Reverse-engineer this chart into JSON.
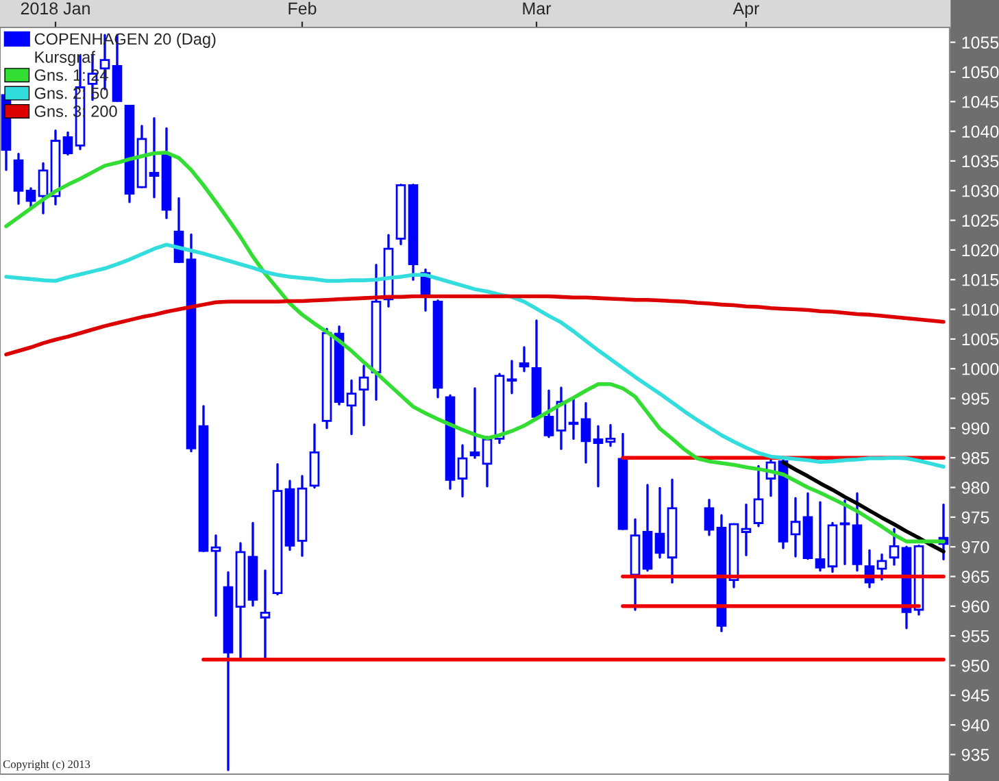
{
  "chart_data": {
    "type": "candlestick",
    "categories": [
      null,
      null,
      null,
      null,
      "2018 Jan",
      null,
      null,
      null,
      null,
      null,
      null,
      null,
      null,
      null,
      null,
      null,
      null,
      null,
      null,
      null,
      null,
      null,
      null,
      null,
      "Feb",
      null,
      null,
      null,
      null,
      null,
      null,
      null,
      null,
      null,
      null,
      null,
      null,
      null,
      null,
      null,
      null,
      null,
      null,
      "Mar",
      null,
      null,
      null,
      null,
      null,
      null,
      null,
      null,
      null,
      null,
      null,
      null,
      null,
      null,
      null,
      null,
      "Apr",
      null,
      null,
      null,
      null,
      null,
      null,
      null,
      null,
      null,
      null,
      null,
      null,
      null,
      null,
      null,
      null
    ],
    "series": [
      {
        "name": "COPENHAGEN 20 (Dag)",
        "color": "#0000ff",
        "ohlc": [
          [
            1046.1,
            1046.1,
            1033.5,
            1036.9
          ],
          [
            1035.1,
            1036.2,
            1027.8,
            1030.0
          ],
          [
            1030.0,
            1030.4,
            1027.3,
            1028.3
          ],
          [
            1029.1,
            1034.6,
            1026.2,
            1033.4
          ],
          [
            1029.1,
            1040.1,
            1027.7,
            1038.4
          ],
          [
            1039.0,
            1039.8,
            1036.1,
            1036.3
          ],
          [
            1037.6,
            1052.7,
            1037.0,
            1047.4
          ],
          [
            1048.0,
            1052.8,
            1045.3,
            1049.7
          ],
          [
            1050.6,
            1056.2,
            1047.1,
            1052.0
          ],
          [
            1051.0,
            1056.2,
            1045.1,
            1045.1
          ],
          [
            1044.3,
            1044.3,
            1028.1,
            1029.5
          ],
          [
            1030.6,
            1040.9,
            1030.6,
            1038.7
          ],
          [
            1033.0,
            1042.2,
            1028.9,
            1032.5
          ],
          [
            1036.1,
            1040.5,
            1025.4,
            1026.8
          ],
          [
            1023.1,
            1028.7,
            1018.0,
            1018.0
          ],
          [
            1018.4,
            1022.6,
            986.1,
            986.6
          ],
          [
            990.3,
            993.7,
            969.3,
            969.3
          ],
          [
            969.3,
            971.9,
            958.4,
            969.9
          ],
          [
            963.2,
            965.7,
            932.4,
            952.2
          ],
          [
            959.9,
            970.6,
            951.3,
            969.1
          ],
          [
            968.3,
            974.0,
            960.1,
            961.1
          ],
          [
            958.1,
            966.0,
            951.3,
            958.9
          ],
          [
            962.2,
            983.9,
            962.0,
            979.4
          ],
          [
            979.7,
            981.1,
            969.5,
            970.2
          ],
          [
            971.0,
            981.9,
            968.5,
            979.8
          ],
          [
            980.3,
            990.6,
            980.0,
            985.9
          ],
          [
            991.2,
            1006.7,
            990.0,
            1006.0
          ],
          [
            1005.9,
            1007.1,
            994.0,
            994.4
          ],
          [
            993.8,
            998.0,
            989.0,
            995.8
          ],
          [
            996.5,
            1000.5,
            990.5,
            998.5
          ],
          [
            999.4,
            1017.5,
            994.8,
            1011.3
          ],
          [
            1011.7,
            1022.5,
            1010.5,
            1020.2
          ],
          [
            1021.9,
            1031.0,
            1021.0,
            1030.9
          ],
          [
            1030.9,
            1031.0,
            1015.0,
            1017.6
          ],
          [
            1016.1,
            1016.7,
            1009.8,
            1012.1
          ],
          [
            1011.3,
            1011.5,
            995.2,
            996.8
          ],
          [
            995.2,
            995.5,
            979.8,
            981.3
          ],
          [
            981.5,
            987.1,
            978.5,
            984.9
          ],
          [
            985.9,
            996.7,
            985.0,
            985.4
          ],
          [
            984.0,
            988.5,
            980.2,
            988.1
          ],
          [
            988.2,
            999.1,
            987.5,
            998.8
          ],
          [
            998.2,
            1001.3,
            995.9,
            998.0
          ],
          [
            1000.9,
            1003.6,
            999.6,
            1000.4
          ],
          [
            1000.1,
            1008.1,
            991.5,
            991.9
          ],
          [
            991.9,
            996.3,
            988.5,
            988.8
          ],
          [
            989.6,
            996.8,
            986.5,
            994.4
          ],
          [
            990.9,
            994.8,
            988.2,
            990.7
          ],
          [
            991.5,
            994.2,
            984.2,
            987.8
          ],
          [
            988.1,
            990.3,
            980.2,
            987.5
          ],
          [
            987.7,
            990.5,
            987.0,
            988.2
          ],
          [
            984.8,
            989.0,
            973.0,
            973.0
          ],
          [
            965.3,
            974.6,
            959.4,
            971.9
          ],
          [
            972.5,
            980.4,
            966.0,
            966.3
          ],
          [
            972.2,
            979.9,
            968.2,
            969.0
          ],
          [
            968.2,
            981.3,
            964.0,
            976.5
          ],
          null,
          null,
          [
            976.5,
            977.9,
            972.0,
            972.9
          ],
          [
            973.2,
            975.3,
            955.8,
            956.7
          ],
          [
            964.4,
            973.8,
            963.2,
            973.8
          ],
          [
            972.5,
            977.1,
            968.6,
            973.0
          ],
          [
            974.0,
            983.6,
            973.5,
            978.0
          ],
          [
            981.5,
            985.2,
            978.6,
            984.2
          ],
          [
            984.4,
            984.8,
            969.8,
            970.9
          ],
          [
            972.1,
            978.2,
            968.4,
            974.2
          ],
          [
            975.0,
            979.0,
            968.0,
            968.1
          ],
          [
            967.9,
            977.5,
            966.0,
            966.5
          ],
          [
            966.7,
            974.0,
            965.8,
            973.6
          ],
          [
            973.9,
            977.8,
            967.1,
            973.8
          ],
          [
            973.6,
            979.0,
            966.0,
            967.1
          ],
          [
            966.7,
            969.4,
            963.2,
            964.0
          ],
          [
            966.3,
            968.7,
            964.5,
            967.6
          ],
          [
            968.2,
            973.0,
            967.0,
            970.1
          ],
          [
            969.8,
            970.0,
            956.3,
            959.0
          ],
          [
            959.4,
            970.2,
            958.6,
            970.1
          ],
          null,
          [
            971.5,
            977.1,
            967.9,
            970.5
          ]
        ]
      },
      {
        "type": "line",
        "name": "Gns. 1: 24",
        "color": "#33dd33",
        "values": [
          1024.0,
          1025.5,
          1027.0,
          1028.5,
          1029.9,
          1031.0,
          1032.0,
          1033.1,
          1034.2,
          1034.7,
          1035.3,
          1035.8,
          1036.3,
          1036.4,
          1035.5,
          1033.5,
          1030.9,
          1028.1,
          1025.2,
          1022.2,
          1018.9,
          1016.0,
          1013.5,
          1011.0,
          1009.1,
          1007.6,
          1006.2,
          1004.7,
          1003.0,
          1001.1,
          999.3,
          997.4,
          995.5,
          993.6,
          992.5,
          991.5,
          990.6,
          989.7,
          988.9,
          988.3,
          988.8,
          989.5,
          990.4,
          991.6,
          992.8,
          994.0,
          995.1,
          996.3,
          997.4,
          997.4,
          996.7,
          995.3,
          992.6,
          989.9,
          988.2,
          986.4,
          984.9,
          984.4,
          984.1,
          983.8,
          983.4,
          983.1,
          982.7,
          982.2,
          981.1,
          980.0,
          979.1,
          978.1,
          977.1,
          976.0,
          974.7,
          973.4,
          972.0,
          970.9,
          970.9,
          970.9,
          970.9
        ]
      },
      {
        "type": "line",
        "name": "Gns. 2: 50",
        "color": "#33dddd",
        "values": [
          1015.5,
          1015.3,
          1015.1,
          1014.9,
          1014.8,
          1015.4,
          1015.9,
          1016.4,
          1016.9,
          1017.6,
          1018.4,
          1019.3,
          1020.2,
          1020.9,
          1020.4,
          1019.9,
          1019.4,
          1018.8,
          1018.2,
          1017.6,
          1017.0,
          1016.3,
          1015.8,
          1015.5,
          1015.3,
          1015.1,
          1014.8,
          1014.8,
          1014.9,
          1014.9,
          1015.0,
          1015.3,
          1015.5,
          1015.8,
          1015.8,
          1015.2,
          1014.6,
          1014.0,
          1013.4,
          1013.0,
          1012.5,
          1012.1,
          1011.3,
          1010.1,
          1008.9,
          1007.8,
          1006.3,
          1004.7,
          1003.1,
          1001.6,
          1000.1,
          998.6,
          997.2,
          995.8,
          994.3,
          992.8,
          991.4,
          990.1,
          988.8,
          987.7,
          986.7,
          985.8,
          985.2,
          985.0,
          984.8,
          984.6,
          984.3,
          984.4,
          984.6,
          984.7,
          984.9,
          984.9,
          985.0,
          984.9,
          984.5,
          984.0,
          983.5
        ]
      },
      {
        "type": "line",
        "name": "Gns. 3: 200",
        "color": "#dd0000",
        "values": [
          1002.4,
          1003.0,
          1003.6,
          1004.3,
          1004.9,
          1005.4,
          1006.0,
          1006.6,
          1007.2,
          1007.7,
          1008.2,
          1008.7,
          1009.1,
          1009.6,
          1010.0,
          1010.4,
          1010.8,
          1011.2,
          1011.3,
          1011.3,
          1011.3,
          1011.3,
          1011.3,
          1011.4,
          1011.4,
          1011.5,
          1011.6,
          1011.7,
          1011.8,
          1011.9,
          1012.0,
          1012.1,
          1012.1,
          1012.2,
          1012.2,
          1012.2,
          1012.2,
          1012.2,
          1012.2,
          1012.2,
          1012.2,
          1012.2,
          1012.2,
          1012.2,
          1012.2,
          1012.1,
          1012.0,
          1012.0,
          1011.9,
          1011.8,
          1011.7,
          1011.6,
          1011.6,
          1011.5,
          1011.4,
          1011.3,
          1011.1,
          1011.0,
          1010.8,
          1010.7,
          1010.5,
          1010.4,
          1010.2,
          1010.1,
          1010.0,
          1009.9,
          1009.7,
          1009.6,
          1009.4,
          1009.2,
          1009.1,
          1008.9,
          1008.7,
          1008.5,
          1008.3,
          1008.1,
          1007.9
        ]
      },
      {
        "type": "line",
        "color": "#ee0000",
        "values": [
          null,
          null,
          null,
          null,
          null,
          null,
          null,
          null,
          null,
          null,
          null,
          null,
          null,
          null,
          null,
          null,
          null,
          null,
          null,
          null,
          null,
          null,
          null,
          null,
          null,
          null,
          null,
          null,
          null,
          null,
          null,
          null,
          null,
          null,
          null,
          null,
          null,
          null,
          null,
          null,
          null,
          null,
          null,
          null,
          null,
          null,
          null,
          null,
          null,
          null,
          985,
          985,
          985,
          985,
          985,
          985,
          985,
          985,
          985,
          985,
          985,
          985,
          985,
          985,
          985,
          985,
          985,
          985,
          985,
          985,
          985,
          985,
          985,
          985,
          985,
          985,
          985
        ]
      },
      {
        "type": "line",
        "color": "#ee0000",
        "values": [
          null,
          null,
          null,
          null,
          null,
          null,
          null,
          null,
          null,
          null,
          null,
          null,
          null,
          null,
          null,
          null,
          null,
          null,
          null,
          null,
          null,
          null,
          null,
          null,
          null,
          null,
          null,
          null,
          null,
          null,
          null,
          null,
          null,
          null,
          null,
          null,
          null,
          null,
          null,
          null,
          null,
          null,
          null,
          null,
          null,
          null,
          null,
          null,
          null,
          null,
          965,
          965,
          965,
          965,
          965,
          965,
          965,
          965,
          965,
          965,
          965,
          965,
          965,
          965,
          965,
          965,
          965,
          965,
          965,
          965,
          965,
          965,
          965,
          965,
          965,
          965,
          965
        ]
      },
      {
        "type": "line",
        "color": "#ee0000",
        "values": [
          null,
          null,
          null,
          null,
          null,
          null,
          null,
          null,
          null,
          null,
          null,
          null,
          null,
          null,
          null,
          null,
          null,
          null,
          null,
          null,
          null,
          null,
          null,
          null,
          null,
          null,
          null,
          null,
          null,
          null,
          null,
          null,
          null,
          null,
          null,
          null,
          null,
          null,
          null,
          null,
          null,
          null,
          null,
          null,
          null,
          null,
          null,
          null,
          null,
          null,
          960,
          960,
          960,
          960,
          960,
          960,
          960,
          960,
          960,
          960,
          960,
          960,
          960,
          960,
          960,
          960,
          960,
          960,
          960,
          960,
          960,
          960,
          960,
          960,
          960,
          null,
          null
        ]
      },
      {
        "type": "line",
        "color": "#ee0000",
        "values": [
          null,
          null,
          null,
          null,
          null,
          null,
          null,
          null,
          null,
          null,
          null,
          null,
          null,
          null,
          null,
          null,
          951,
          951,
          951,
          951,
          951,
          951,
          951,
          951,
          951,
          951,
          951,
          951,
          951,
          951,
          951,
          951,
          951,
          951,
          951,
          951,
          951,
          951,
          951,
          951,
          951,
          951,
          951,
          951,
          951,
          951,
          951,
          951,
          951,
          951,
          951,
          951,
          951,
          951,
          951,
          951,
          951,
          951,
          951,
          951,
          951,
          951,
          951,
          951,
          951,
          951,
          951,
          951,
          951,
          951,
          951,
          951,
          951,
          951,
          951,
          951,
          951
        ]
      },
      {
        "type": "line",
        "color": "#000000",
        "values": [
          null,
          null,
          null,
          null,
          null,
          null,
          null,
          null,
          null,
          null,
          null,
          null,
          null,
          null,
          null,
          null,
          null,
          null,
          null,
          null,
          null,
          null,
          null,
          null,
          null,
          null,
          null,
          null,
          null,
          null,
          null,
          null,
          null,
          null,
          null,
          null,
          null,
          null,
          null,
          null,
          null,
          null,
          null,
          null,
          null,
          null,
          null,
          null,
          null,
          null,
          null,
          null,
          null,
          null,
          null,
          null,
          null,
          null,
          null,
          null,
          null,
          null,
          null,
          984.2,
          983.0,
          981.9,
          980.7,
          979.6,
          978.4,
          977.3,
          976.1,
          974.9,
          973.8,
          972.6,
          971.5,
          970.3,
          969.2
        ]
      }
    ],
    "ylim": [
      931.7,
      1057.5
    ],
    "yticks": [
      935,
      940,
      945,
      950,
      955,
      960,
      965,
      970,
      975,
      980,
      985,
      990,
      995,
      1000,
      1005,
      1010,
      1015,
      1020,
      1025,
      1030,
      1035,
      1040,
      1045,
      1050,
      1055
    ],
    "annotations": [
      "Kursgraf",
      "Copyright (c) 2013"
    ],
    "legend": "top left",
    "grid": false
  }
}
